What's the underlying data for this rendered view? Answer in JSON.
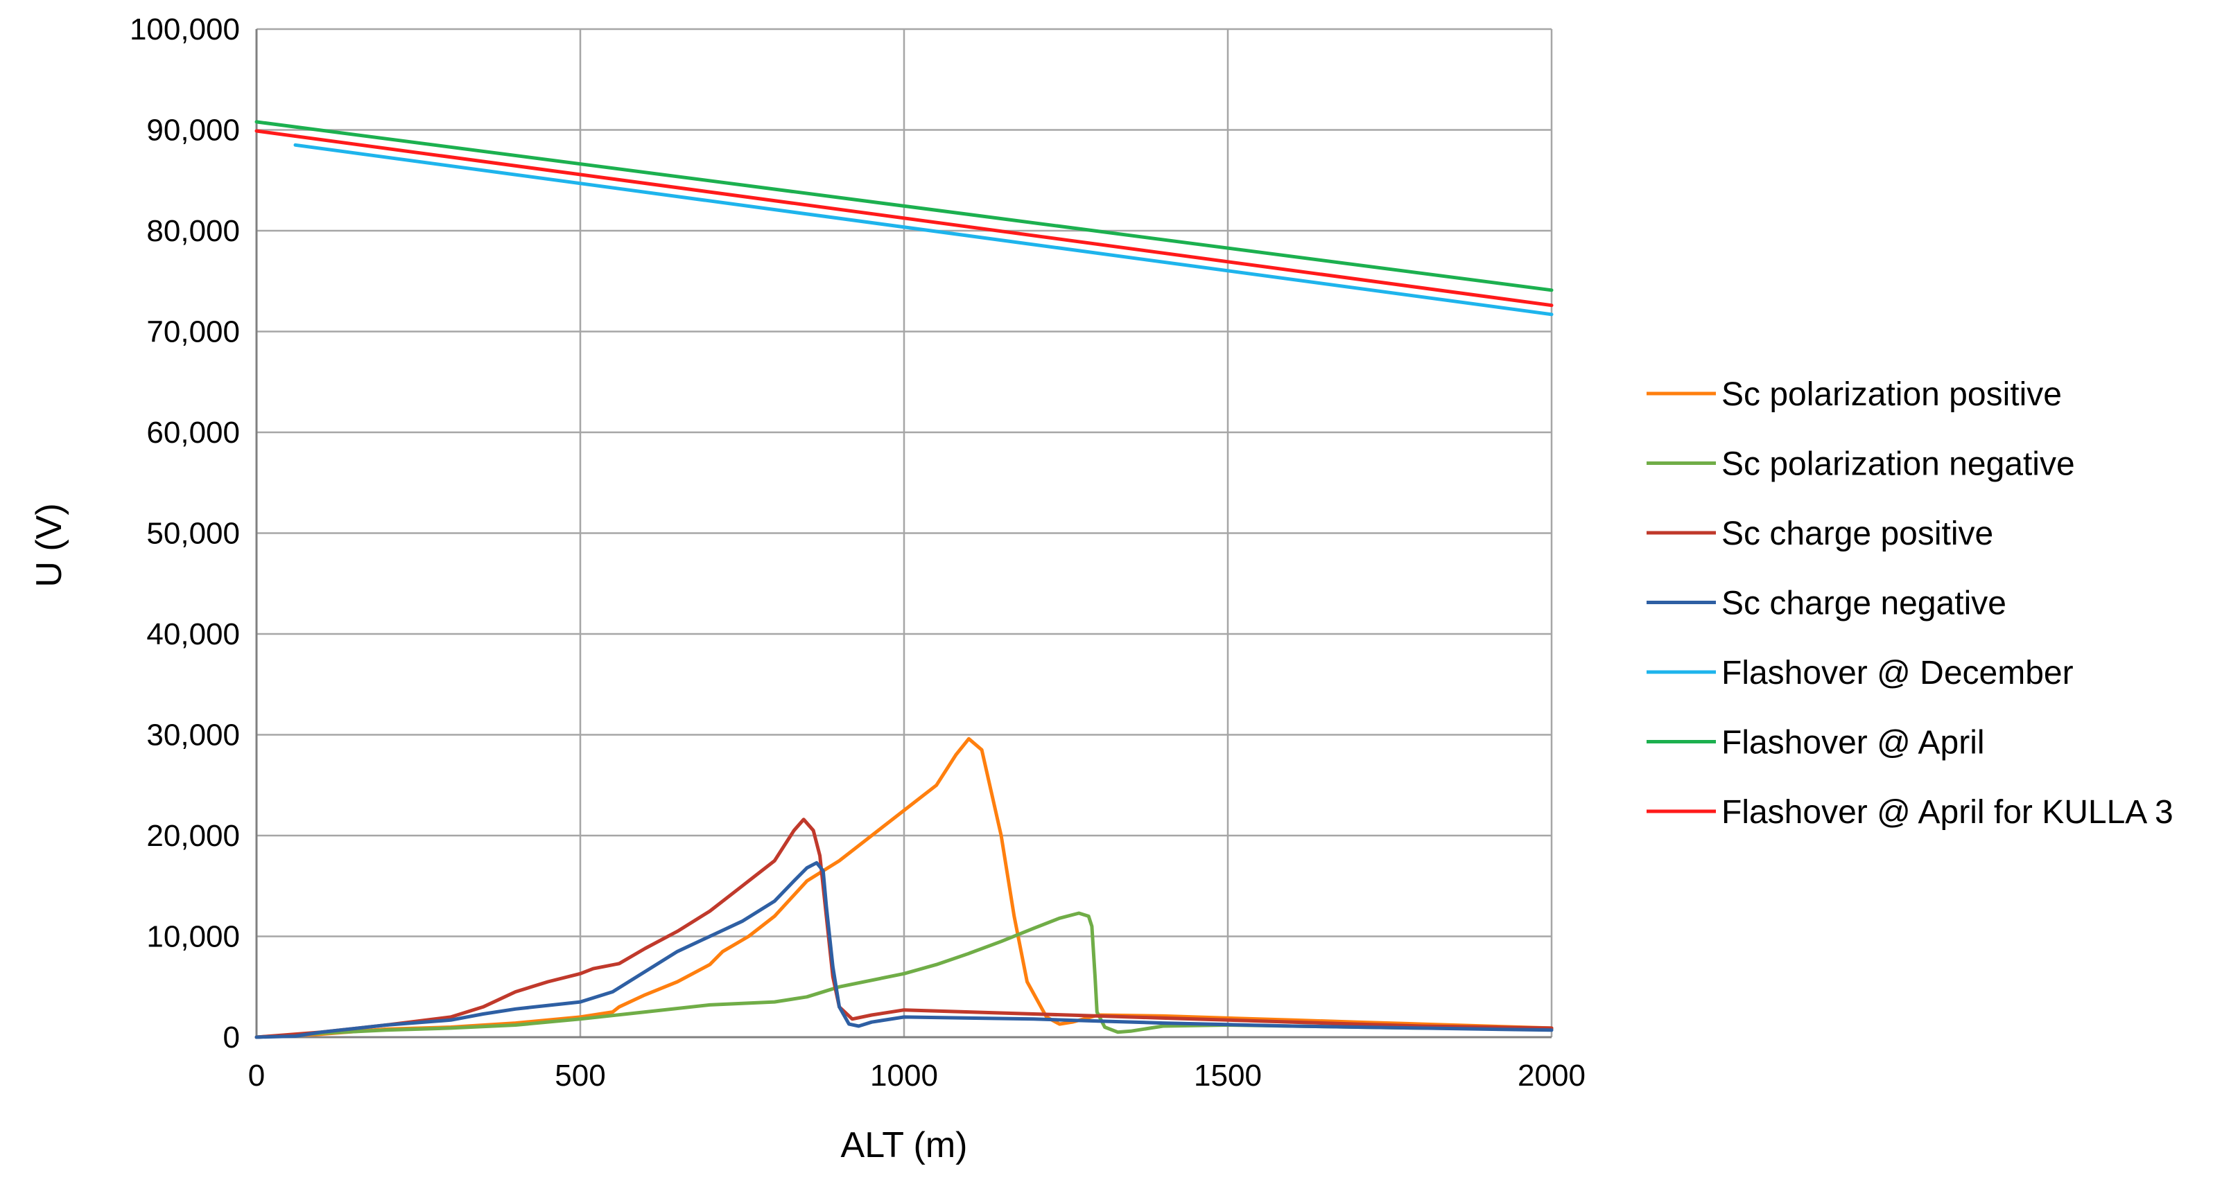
{
  "chart_data": {
    "type": "line",
    "title": "",
    "xlabel": "ALT (m)",
    "ylabel": "U (V)",
    "xlim": [
      0,
      2000
    ],
    "ylim": [
      0,
      100000
    ],
    "x_ticks": [
      0,
      500,
      1000,
      1500,
      2000
    ],
    "x_tick_labels": [
      "0",
      "500",
      "1000",
      "1500",
      "2000"
    ],
    "y_ticks": [
      0,
      10000,
      20000,
      30000,
      40000,
      50000,
      60000,
      70000,
      80000,
      90000,
      100000
    ],
    "y_tick_labels": [
      "0",
      "10,000",
      "20,000",
      "30,000",
      "40,000",
      "50,000",
      "60,000",
      "70,000",
      "80,000",
      "90,000",
      "100,000"
    ],
    "grid": true,
    "legend_position": "right",
    "series": [
      {
        "name": "Sc polarization positive",
        "color": "#FF7F0E",
        "points": [
          [
            0,
            0
          ],
          [
            100,
            300
          ],
          [
            200,
            800
          ],
          [
            300,
            1000
          ],
          [
            400,
            1400
          ],
          [
            500,
            2000
          ],
          [
            550,
            2500
          ],
          [
            560,
            3000
          ],
          [
            600,
            4200
          ],
          [
            650,
            5500
          ],
          [
            700,
            7200
          ],
          [
            720,
            8500
          ],
          [
            760,
            10000
          ],
          [
            800,
            12000
          ],
          [
            850,
            15500
          ],
          [
            900,
            17500
          ],
          [
            950,
            20000
          ],
          [
            1000,
            22500
          ],
          [
            1050,
            25000
          ],
          [
            1080,
            28000
          ],
          [
            1100,
            29600
          ],
          [
            1120,
            28500
          ],
          [
            1150,
            20000
          ],
          [
            1170,
            12000
          ],
          [
            1190,
            5500
          ],
          [
            1220,
            2000
          ],
          [
            1240,
            1300
          ],
          [
            1260,
            1500
          ],
          [
            1300,
            2200
          ],
          [
            1400,
            2100
          ],
          [
            1500,
            1900
          ],
          [
            1600,
            1700
          ],
          [
            1700,
            1500
          ],
          [
            1800,
            1300
          ],
          [
            1900,
            1100
          ],
          [
            2000,
            900
          ]
        ]
      },
      {
        "name": "Sc polarization negative",
        "color": "#70AD47",
        "points": [
          [
            0,
            0
          ],
          [
            100,
            400
          ],
          [
            200,
            700
          ],
          [
            300,
            900
          ],
          [
            400,
            1200
          ],
          [
            500,
            1800
          ],
          [
            600,
            2500
          ],
          [
            700,
            3200
          ],
          [
            800,
            3500
          ],
          [
            850,
            4000
          ],
          [
            900,
            5000
          ],
          [
            1000,
            6300
          ],
          [
            1050,
            7200
          ],
          [
            1100,
            8300
          ],
          [
            1150,
            9500
          ],
          [
            1200,
            10800
          ],
          [
            1240,
            11800
          ],
          [
            1270,
            12300
          ],
          [
            1285,
            12000
          ],
          [
            1290,
            11000
          ],
          [
            1295,
            6000
          ],
          [
            1298,
            2500
          ],
          [
            1310,
            1000
          ],
          [
            1330,
            500
          ],
          [
            1350,
            600
          ],
          [
            1400,
            1100
          ],
          [
            1500,
            1200
          ],
          [
            1600,
            1100
          ],
          [
            1700,
            1000
          ],
          [
            1800,
            900
          ],
          [
            1900,
            850
          ],
          [
            2000,
            800
          ]
        ]
      },
      {
        "name": "Sc charge positive",
        "color": "#C0392B",
        "points": [
          [
            0,
            0
          ],
          [
            100,
            500
          ],
          [
            200,
            1200
          ],
          [
            300,
            2000
          ],
          [
            350,
            3000
          ],
          [
            400,
            4500
          ],
          [
            450,
            5500
          ],
          [
            500,
            6300
          ],
          [
            520,
            6800
          ],
          [
            560,
            7300
          ],
          [
            600,
            8800
          ],
          [
            650,
            10500
          ],
          [
            700,
            12500
          ],
          [
            750,
            15000
          ],
          [
            800,
            17500
          ],
          [
            830,
            20500
          ],
          [
            845,
            21600
          ],
          [
            860,
            20500
          ],
          [
            870,
            18000
          ],
          [
            880,
            12000
          ],
          [
            890,
            6000
          ],
          [
            900,
            3000
          ],
          [
            920,
            1800
          ],
          [
            950,
            2200
          ],
          [
            1000,
            2700
          ],
          [
            1100,
            2500
          ],
          [
            1200,
            2300
          ],
          [
            1300,
            2100
          ],
          [
            1400,
            1900
          ],
          [
            1500,
            1700
          ],
          [
            1600,
            1500
          ],
          [
            1700,
            1300
          ],
          [
            1800,
            1100
          ],
          [
            1900,
            1000
          ],
          [
            2000,
            900
          ]
        ]
      },
      {
        "name": "Sc charge negative",
        "color": "#2E5FA3",
        "points": [
          [
            0,
            0
          ],
          [
            60,
            100
          ],
          [
            100,
            500
          ],
          [
            200,
            1200
          ],
          [
            300,
            1700
          ],
          [
            350,
            2300
          ],
          [
            400,
            2800
          ],
          [
            500,
            3500
          ],
          [
            550,
            4500
          ],
          [
            600,
            6500
          ],
          [
            650,
            8500
          ],
          [
            700,
            10000
          ],
          [
            750,
            11500
          ],
          [
            800,
            13500
          ],
          [
            830,
            15500
          ],
          [
            850,
            16800
          ],
          [
            865,
            17300
          ],
          [
            875,
            16500
          ],
          [
            880,
            13000
          ],
          [
            890,
            7000
          ],
          [
            900,
            3000
          ],
          [
            915,
            1300
          ],
          [
            930,
            1100
          ],
          [
            950,
            1500
          ],
          [
            1000,
            2000
          ],
          [
            1100,
            1900
          ],
          [
            1200,
            1800
          ],
          [
            1300,
            1600
          ],
          [
            1400,
            1400
          ],
          [
            1500,
            1250
          ],
          [
            1600,
            1100
          ],
          [
            1700,
            1000
          ],
          [
            1800,
            900
          ],
          [
            1900,
            800
          ],
          [
            2000,
            700
          ]
        ]
      },
      {
        "name": "Flashover @ December",
        "color": "#1EB4EC",
        "points": [
          [
            60,
            88500
          ],
          [
            2000,
            71700
          ]
        ]
      },
      {
        "name": "Flashover @ April",
        "color": "#1CB04F",
        "points": [
          [
            0,
            90800
          ],
          [
            2000,
            74100
          ]
        ]
      },
      {
        "name": "Flashover @ April for KULLA 3",
        "color": "#FF1A1A",
        "points": [
          [
            0,
            89900
          ],
          [
            2000,
            72600
          ]
        ]
      }
    ]
  }
}
